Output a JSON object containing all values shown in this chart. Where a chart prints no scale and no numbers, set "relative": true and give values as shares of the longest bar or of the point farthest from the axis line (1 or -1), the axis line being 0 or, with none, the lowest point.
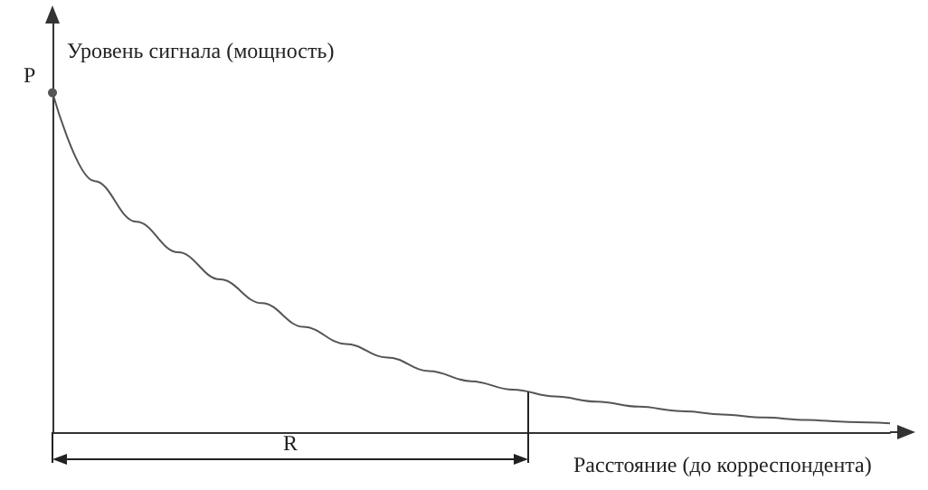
{
  "chart_data": {
    "type": "line",
    "relative": true,
    "xlabel": "Расстояние (до корреспондента)",
    "ylabel": "Уровень сигнала (мощность)",
    "categories": [
      null,
      null,
      null,
      null,
      null,
      null,
      null,
      null,
      null,
      null,
      null,
      null,
      null,
      null,
      null,
      null,
      null,
      null,
      null,
      null,
      null
    ],
    "series": [
      {
        "color": "#555555",
        "values": [
          1.0,
          0.74,
          0.62,
          0.53,
          0.45,
          0.38,
          0.31,
          0.26,
          0.22,
          0.18,
          0.15,
          0.125,
          0.105,
          0.09,
          0.075,
          0.062,
          0.052,
          0.043,
          0.036,
          0.03,
          0.026
        ]
      }
    ],
    "annotations": [
      "P",
      "R"
    ],
    "grid": false
  }
}
